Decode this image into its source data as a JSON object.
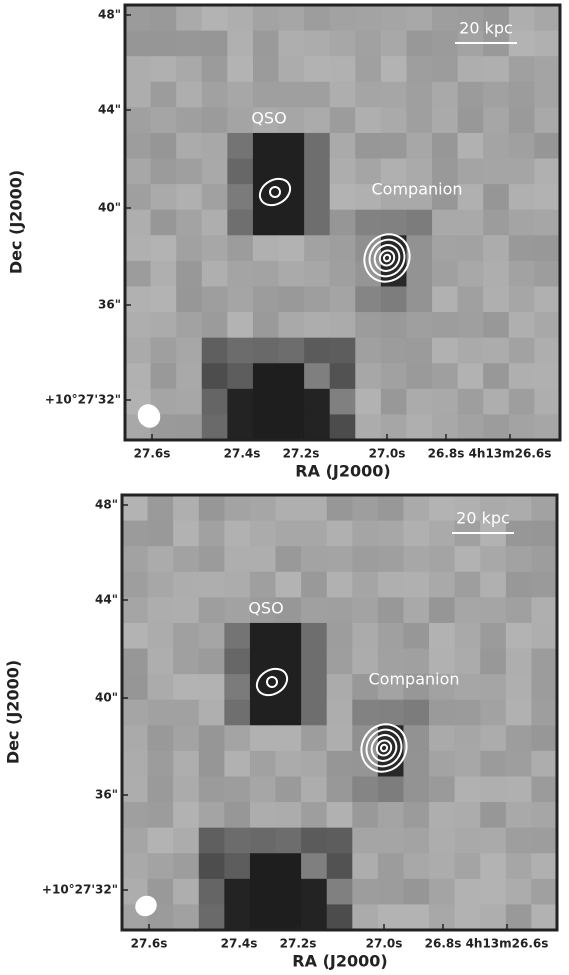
{
  "panels": [
    {
      "scale_label": "20 kpc",
      "labels": [
        "QSO",
        "Companion"
      ],
      "xticks": [
        "27.6s",
        "27.4s",
        "27.2s",
        "27.0s",
        "26.8s",
        "4h13m26.6s"
      ],
      "yticks": [
        "48\"",
        "44\"",
        "40\"",
        "36\"",
        "+10°27'32\""
      ],
      "xlabel": "RA (J2000)",
      "ylabel": "Dec (J2000)"
    },
    {
      "scale_label": "20 kpc",
      "labels": [
        "QSO",
        "Companion"
      ],
      "xticks": [
        "27.6s",
        "27.4s",
        "27.2s",
        "27.0s",
        "26.8s",
        "4h13m26.6s"
      ],
      "yticks": [
        "48\"",
        "44\"",
        "40\"",
        "36\"",
        "+10°27'32\""
      ],
      "xlabel": "RA (J2000)",
      "ylabel": "Dec (J2000)"
    }
  ]
}
